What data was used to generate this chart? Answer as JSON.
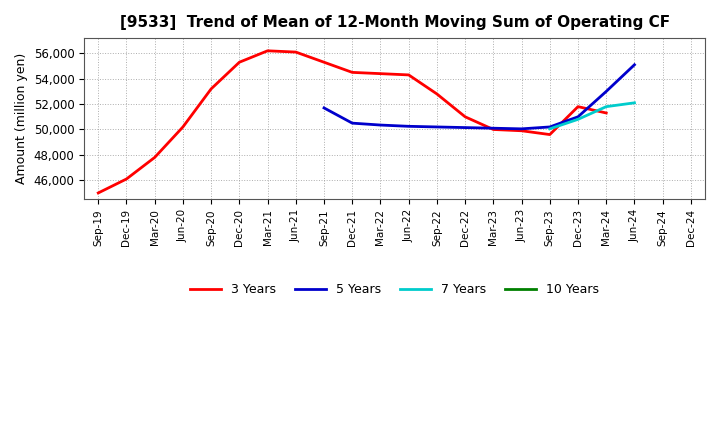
{
  "title": "[9533]  Trend of Mean of 12-Month Moving Sum of Operating CF",
  "ylabel": "Amount (million yen)",
  "background_color": "#ffffff",
  "plot_bg_color": "#ffffff",
  "grid_color": "#888888",
  "x_labels": [
    "Sep-19",
    "Dec-19",
    "Mar-20",
    "Jun-20",
    "Sep-20",
    "Dec-20",
    "Mar-21",
    "Jun-21",
    "Sep-21",
    "Dec-21",
    "Mar-22",
    "Jun-22",
    "Sep-22",
    "Dec-22",
    "Mar-23",
    "Jun-23",
    "Sep-23",
    "Dec-23",
    "Mar-24",
    "Jun-24",
    "Sep-24",
    "Dec-24"
  ],
  "ylim": [
    44500,
    57200
  ],
  "yticks": [
    46000,
    48000,
    50000,
    52000,
    54000,
    56000
  ],
  "series": {
    "3years": {
      "color": "#ff0000",
      "label": "3 Years",
      "x": [
        0,
        1,
        2,
        3,
        4,
        5,
        6,
        7,
        8,
        9,
        10,
        11,
        12,
        13,
        14,
        15,
        16,
        17,
        18
      ],
      "y": [
        45000,
        46100,
        47800,
        50200,
        53200,
        55300,
        56200,
        56100,
        55300,
        54500,
        54400,
        54300,
        52800,
        51000,
        50000,
        49900,
        49600,
        51800,
        51300
      ]
    },
    "5years": {
      "color": "#0000cc",
      "label": "5 Years",
      "x": [
        8,
        9,
        10,
        11,
        12,
        13,
        14,
        15,
        16,
        17,
        18,
        19
      ],
      "y": [
        51700,
        50500,
        50350,
        50250,
        50200,
        50150,
        50100,
        50050,
        50200,
        51000,
        53000,
        55100
      ]
    },
    "7years": {
      "color": "#00cccc",
      "label": "7 Years",
      "x": [
        16,
        17,
        18,
        19
      ],
      "y": [
        50050,
        50800,
        51800,
        52100
      ]
    },
    "10years": {
      "color": "#008000",
      "label": "10 Years",
      "x": [],
      "y": []
    }
  }
}
